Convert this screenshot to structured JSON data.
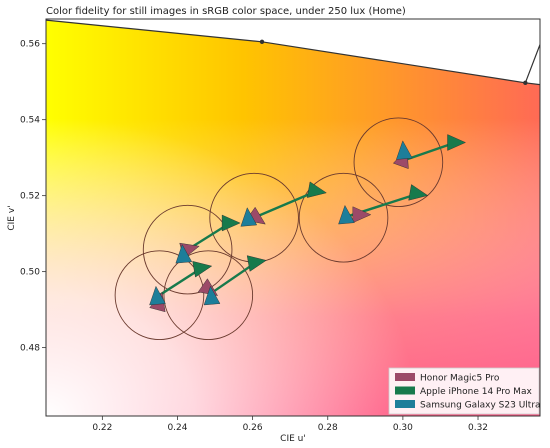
{
  "chart_data": {
    "type": "scatter",
    "title": "Color fidelity for still images in sRGB color space, under 250 lux (Home)",
    "xlabel": "CIE u'",
    "ylabel": "CIE v'",
    "xlim": [
      0.205,
      0.3365
    ],
    "ylim": [
      0.462,
      0.5665
    ],
    "xticks": [
      "0.22",
      "0.24",
      "0.26",
      "0.28",
      "0.30",
      "0.32"
    ],
    "yticks": [
      "0.48",
      "0.50",
      "0.52",
      "0.54",
      "0.56"
    ],
    "gamut_boundary": {
      "points": [
        {
          "u": 0.202,
          "v": 0.5665
        },
        {
          "u": 0.2625,
          "v": 0.5605
        },
        {
          "u": 0.3326,
          "v": 0.5497
        },
        {
          "u": 0.3385,
          "v": 0.549
        }
      ],
      "markers": [
        {
          "u": 0.2625,
          "v": 0.5605
        },
        {
          "u": 0.3326,
          "v": 0.5497
        }
      ],
      "inner_line": {
        "from": {
          "u": 0.3326,
          "v": 0.5497
        },
        "to": {
          "u": 0.3395,
          "v": 0.5675
        }
      }
    },
    "tolerance_circles": [
      {
        "u": 0.2352,
        "v": 0.4938,
        "r": 0.0118
      },
      {
        "u": 0.2427,
        "v": 0.5058,
        "r": 0.0118
      },
      {
        "u": 0.2482,
        "v": 0.4938,
        "r": 0.0118
      },
      {
        "u": 0.2604,
        "v": 0.5142,
        "r": 0.0118
      },
      {
        "u": 0.2842,
        "v": 0.5142,
        "r": 0.0118
      },
      {
        "u": 0.2988,
        "v": 0.5288,
        "r": 0.0118
      }
    ],
    "arrows": [
      {
        "from": {
          "u": 0.2352,
          "v": 0.4938
        },
        "to": {
          "u": 0.2465,
          "v": 0.501
        }
      },
      {
        "from": {
          "u": 0.2427,
          "v": 0.5058
        },
        "to": {
          "u": 0.254,
          "v": 0.5128
        }
      },
      {
        "from": {
          "u": 0.2482,
          "v": 0.4938
        },
        "to": {
          "u": 0.261,
          "v": 0.5025
        }
      },
      {
        "from": {
          "u": 0.2604,
          "v": 0.5142
        },
        "to": {
          "u": 0.277,
          "v": 0.5212
        }
      },
      {
        "from": {
          "u": 0.2842,
          "v": 0.5142
        },
        "to": {
          "u": 0.304,
          "v": 0.5205
        }
      },
      {
        "from": {
          "u": 0.2988,
          "v": 0.5288
        },
        "to": {
          "u": 0.314,
          "v": 0.534
        }
      }
    ],
    "series": [
      {
        "name": "Honor Magic5 Pro",
        "color": "#9c4a68",
        "points": [
          {
            "u": 0.2352,
            "v": 0.492,
            "angle": 75
          },
          {
            "u": 0.2432,
            "v": 0.506,
            "angle": 15
          },
          {
            "u": 0.2485,
            "v": 0.4952,
            "angle": -35
          },
          {
            "u": 0.2612,
            "v": 0.514,
            "angle": -35
          },
          {
            "u": 0.2888,
            "v": 0.515,
            "angle": 0
          },
          {
            "u": 0.3002,
            "v": 0.5298,
            "angle": 70
          }
        ]
      },
      {
        "name": "Apple iPhone 14 Pro Max",
        "color": "#177a4c",
        "points": [
          {
            "u": 0.2465,
            "v": 0.501,
            "angle": 10
          },
          {
            "u": 0.254,
            "v": 0.5128,
            "angle": 0
          },
          {
            "u": 0.261,
            "v": 0.5025,
            "angle": 10
          },
          {
            "u": 0.277,
            "v": 0.5212,
            "angle": -10
          },
          {
            "u": 0.304,
            "v": 0.5205,
            "angle": -10
          },
          {
            "u": 0.314,
            "v": 0.534,
            "angle": 0
          }
        ]
      },
      {
        "name": "Samsung Galaxy S23 Ultra",
        "color": "#1d7e9a",
        "points": [
          {
            "u": 0.2345,
            "v": 0.4935,
            "angle": 95
          },
          {
            "u": 0.2415,
            "v": 0.5045,
            "angle": 95
          },
          {
            "u": 0.249,
            "v": 0.4935,
            "angle": 95
          },
          {
            "u": 0.2588,
            "v": 0.5142,
            "angle": 95
          },
          {
            "u": 0.2848,
            "v": 0.5148,
            "angle": 95
          },
          {
            "u": 0.3002,
            "v": 0.5318,
            "angle": 95
          }
        ]
      }
    ],
    "legend": {
      "placement": "bottom-right",
      "entries": [
        "Honor Magic5 Pro",
        "Apple iPhone 14 Pro Max",
        "Samsung Galaxy S23 Ultra"
      ]
    },
    "grid": false
  }
}
